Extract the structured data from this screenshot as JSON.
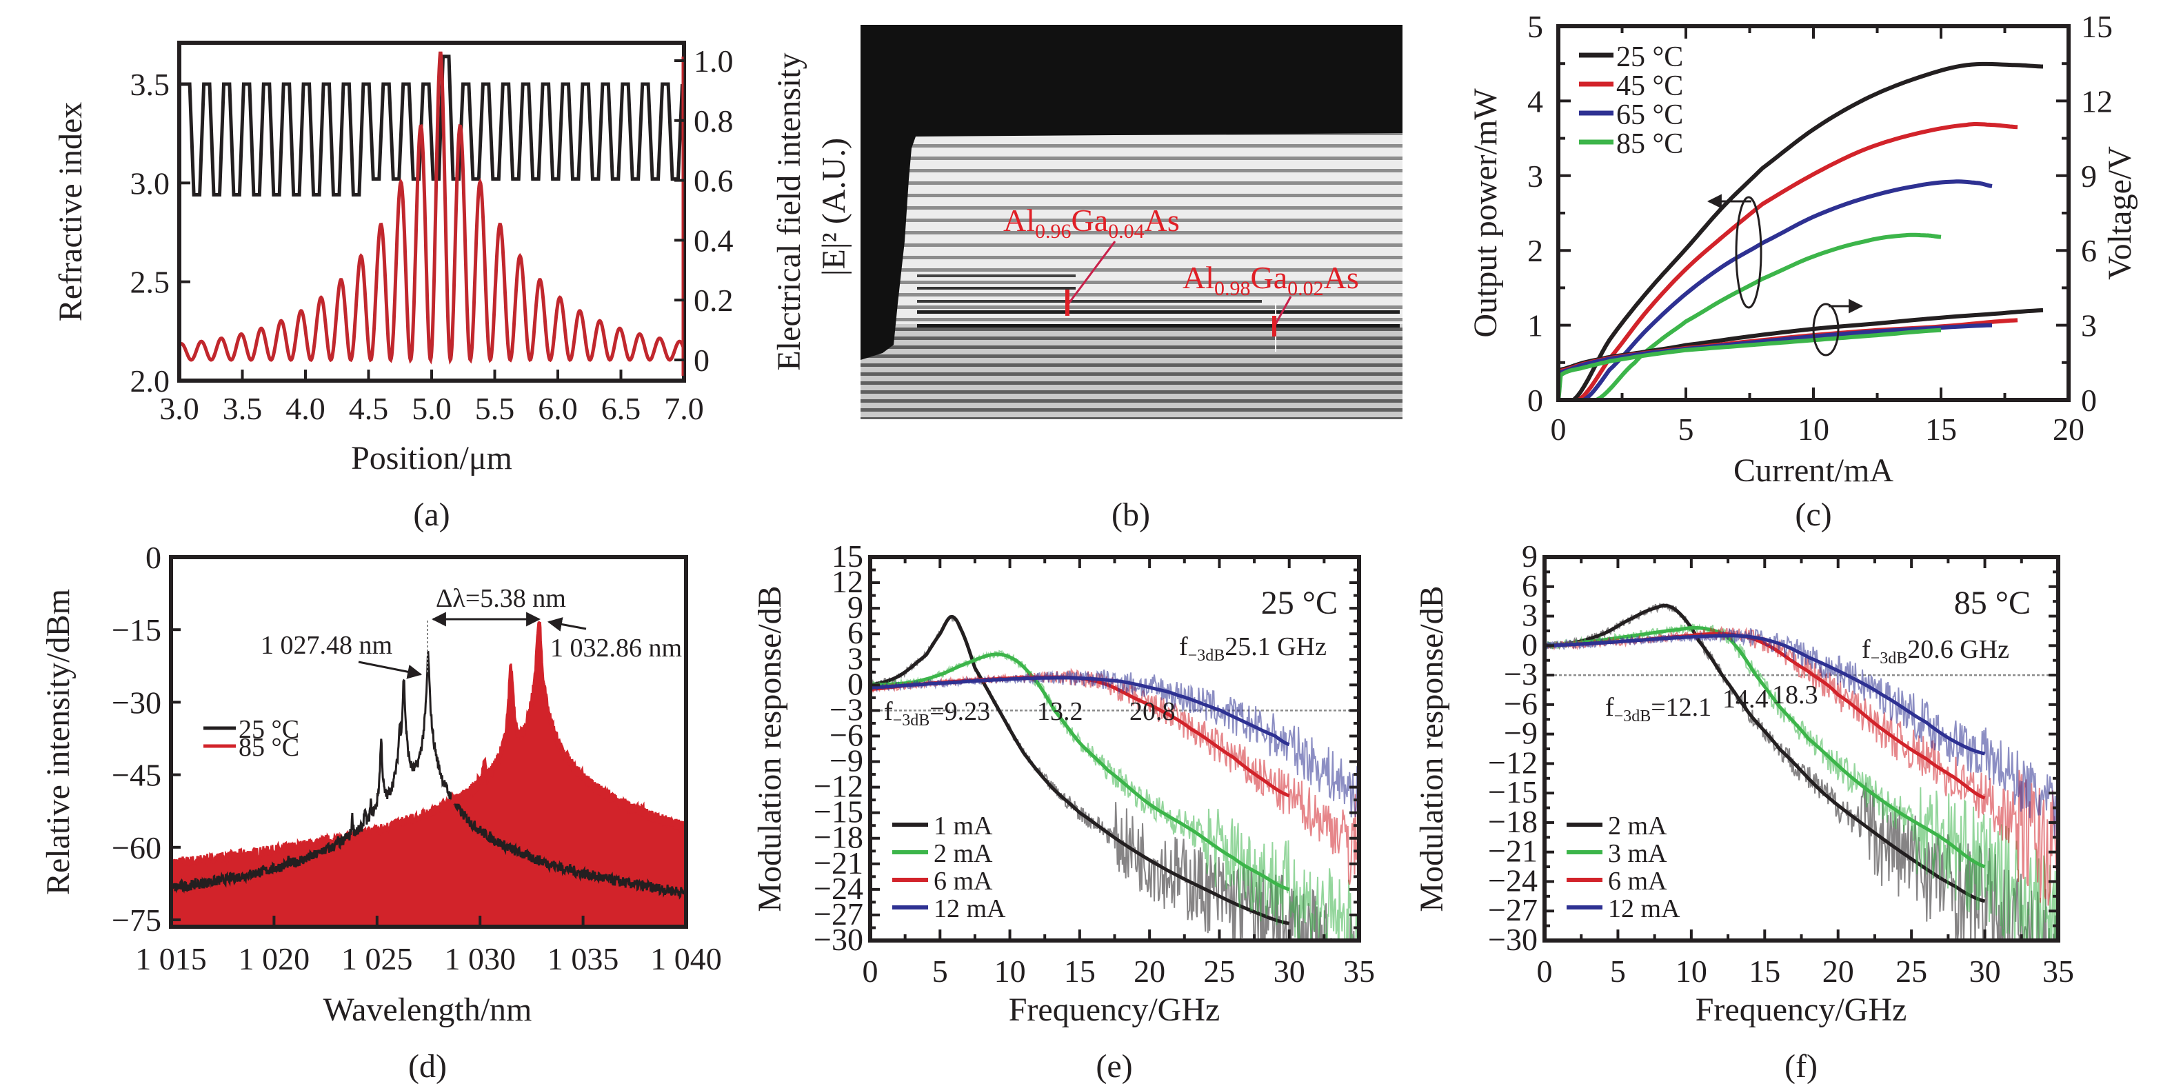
{
  "figure": {
    "panel_labels": [
      "(a)",
      "(b)",
      "(c)",
      "(d)",
      "(e)",
      "(f)"
    ]
  },
  "colors": {
    "black": "#231f20",
    "red": "#d2232a",
    "blue": "#2e3192",
    "green": "#3cb54a",
    "annot_red": "#e01f26",
    "gray_line": "#9a9a9a"
  },
  "chart_data": [
    {
      "id": "a",
      "type": "line",
      "title": "",
      "xlabel": "Position/μm",
      "ylabel": "Refractive index",
      "y2label": "Electrical field intensity |E|² (A.U.)",
      "xlim": [
        3.0,
        7.0
      ],
      "ylim": [
        2.0,
        3.7
      ],
      "y2lim": [
        -0.1,
        1.1
      ],
      "xticks": [
        "3.0",
        "3.5",
        "4.0",
        "4.5",
        "5.0",
        "5.5",
        "6.0",
        "6.5",
        "7.0"
      ],
      "yticks": [
        "2.0",
        "2.5",
        "3.0",
        "3.5"
      ],
      "y2ticks": [
        "0",
        "0.2",
        "0.4",
        "0.6",
        "0.8",
        "1.0"
      ],
      "series": [
        {
          "name": "Refractive index",
          "axis": "left",
          "color": "#231f20",
          "shape": "square-wave",
          "high": 3.5,
          "low_left": 2.94,
          "low_right": 3.02,
          "period_um": 0.158,
          "step_at_um": 4.46,
          "cavity_center_um": 5.07,
          "cavity_peak": 3.64
        },
        {
          "name": "Electric field intensity",
          "axis": "right",
          "color": "#c1272d",
          "shape": "standing-wave",
          "center_um": 5.07,
          "period_um": 0.158,
          "peak": 1.0,
          "decay_um": 0.55,
          "baseline_envelope": 0.03
        }
      ]
    },
    {
      "id": "b",
      "type": "image",
      "annotations": [
        {
          "base": "Al",
          "sub1": "0.96",
          "mid": "Ga",
          "sub2": "0.04",
          "end": "As"
        },
        {
          "base": "Al",
          "sub1": "0.98",
          "mid": "Ga",
          "sub2": "0.02",
          "end": "As"
        }
      ]
    },
    {
      "id": "c",
      "type": "line",
      "xlabel": "Current/mA",
      "ylabel": "Output power/mW",
      "y2label": "Voltage/V",
      "xlim": [
        0,
        20
      ],
      "ylim": [
        0,
        5
      ],
      "y2lim": [
        0,
        15
      ],
      "xticks": [
        "0",
        "5",
        "10",
        "15",
        "20"
      ],
      "yticks": [
        "0",
        "1",
        "2",
        "3",
        "4",
        "5"
      ],
      "y2ticks": [
        "0",
        "3",
        "6",
        "9",
        "12",
        "15"
      ],
      "legend": [
        "25 °C",
        "45 °C",
        "65 °C",
        "85 °C"
      ],
      "legend_position": "top-left",
      "series": [
        {
          "name": "25 °C power",
          "axis": "left",
          "color": "#231f20",
          "x": [
            0.6,
            2,
            3.5,
            5,
            6.5,
            8,
            10,
            12,
            14,
            16,
            18,
            19
          ],
          "y": [
            0,
            0.8,
            1.45,
            2.02,
            2.6,
            3.1,
            3.62,
            4.02,
            4.3,
            4.48,
            4.48,
            4.46
          ]
        },
        {
          "name": "45 °C power",
          "axis": "left",
          "color": "#d2232a",
          "x": [
            0.8,
            2,
            3.5,
            5,
            6.5,
            8,
            10,
            12,
            14,
            16,
            17,
            18
          ],
          "y": [
            0,
            0.55,
            1.2,
            1.75,
            2.2,
            2.62,
            3.02,
            3.35,
            3.56,
            3.68,
            3.68,
            3.65
          ]
        },
        {
          "name": "65 °C power",
          "axis": "left",
          "color": "#2e3192",
          "x": [
            1.0,
            2,
            3.5,
            5,
            6.5,
            8,
            10,
            12,
            14,
            15.5,
            16.5,
            17
          ],
          "y": [
            0,
            0.4,
            0.95,
            1.42,
            1.8,
            2.1,
            2.45,
            2.7,
            2.86,
            2.92,
            2.9,
            2.86
          ]
        },
        {
          "name": "85 °C power",
          "axis": "left",
          "color": "#3cb54a",
          "x": [
            1.5,
            3,
            4,
            5,
            6.5,
            8,
            10,
            12,
            13.5,
            14.5,
            15
          ],
          "y": [
            0,
            0.5,
            0.8,
            1.05,
            1.35,
            1.62,
            1.92,
            2.12,
            2.2,
            2.2,
            2.18
          ]
        },
        {
          "name": "25 °C voltage",
          "axis": "right",
          "color": "#231f20",
          "x": [
            0,
            1,
            2,
            3.5,
            5,
            7.5,
            10,
            12.5,
            15,
            17,
            19
          ],
          "y": [
            1.2,
            1.5,
            1.72,
            1.95,
            2.2,
            2.55,
            2.85,
            3.07,
            3.3,
            3.45,
            3.6
          ]
        },
        {
          "name": "45 °C voltage",
          "axis": "right",
          "color": "#d2232a",
          "x": [
            0,
            1,
            2,
            3.5,
            5,
            7.5,
            10,
            12.5,
            15,
            18
          ],
          "y": [
            1.15,
            1.45,
            1.68,
            1.9,
            2.08,
            2.35,
            2.6,
            2.8,
            2.95,
            3.2
          ]
        },
        {
          "name": "65 °C voltage",
          "axis": "right",
          "color": "#2e3192",
          "x": [
            0,
            1,
            2,
            3.5,
            5,
            7.5,
            10,
            12.5,
            15,
            17
          ],
          "y": [
            1.1,
            1.42,
            1.65,
            1.88,
            2.05,
            2.3,
            2.55,
            2.75,
            2.9,
            3.0
          ]
        },
        {
          "name": "85 °C voltage",
          "axis": "right",
          "color": "#3cb54a",
          "x": [
            0,
            0.1,
            1,
            2,
            3.5,
            5,
            7.5,
            10,
            12.5,
            15
          ],
          "y": [
            0,
            1.0,
            1.3,
            1.55,
            1.8,
            2.0,
            2.2,
            2.4,
            2.6,
            2.8
          ]
        }
      ],
      "annotations": [
        {
          "text": "left-arrow",
          "target": "power curves"
        },
        {
          "text": "right-arrow",
          "target": "voltage curves"
        }
      ]
    },
    {
      "id": "d",
      "type": "line",
      "xlabel": "Wavelength/nm",
      "ylabel": "Relative intensity/dBm",
      "xlim": [
        1015,
        1040
      ],
      "ylim": [
        -78,
        0
      ],
      "xticks": [
        "1 015",
        "1 020",
        "1 025",
        "1 030",
        "1 035",
        "1 040"
      ],
      "yticks": [
        "0",
        "−15",
        "−30",
        "−45",
        "−60",
        "−75"
      ],
      "legend": [
        "25 °C",
        "85 °C"
      ],
      "legend_position": "middle-left",
      "noise_floor_dbm": -75,
      "series": [
        {
          "name": "25 °C",
          "color": "#231f20",
          "peaks_nm": [
            1020.7,
            1022.3,
            1022.6,
            1023.1,
            1023.5,
            1023.8,
            1024.4,
            1024.7,
            1025.2,
            1026.1,
            1026.3,
            1027.48
          ],
          "peaks_dbm": [
            -71,
            -69,
            -70,
            -67,
            -65,
            -56,
            -55,
            -54,
            -38,
            -36,
            -25,
            -20
          ]
        },
        {
          "name": "85 °C",
          "color": "#d2232a",
          "peaks_nm": [
            1028.3,
            1028.8,
            1029.1,
            1029.6,
            1029.9,
            1030.2,
            1031.1,
            1031.5,
            1032.86
          ],
          "peaks_dbm": [
            -69,
            -65,
            -60,
            -61,
            -59,
            -46,
            -48,
            -23,
            -13
          ]
        }
      ],
      "annotations": [
        {
          "text": "1 027.48 nm"
        },
        {
          "text": "1 032.86 nm"
        },
        {
          "text": "Δλ=5.38 nm"
        }
      ]
    },
    {
      "id": "e",
      "type": "line",
      "title": "25 °C",
      "xlabel": "Frequency/GHz",
      "ylabel": "Modulation response/dB",
      "xlim": [
        0,
        35
      ],
      "ylim": [
        -30,
        15
      ],
      "xticks": [
        "0",
        "5",
        "10",
        "15",
        "20",
        "25",
        "30",
        "35"
      ],
      "yticks": [
        "15",
        "12",
        "9",
        "6",
        "3",
        "0",
        "−3",
        "−6",
        "−9",
        "−12",
        "−15",
        "−18",
        "−21",
        "−24",
        "−27",
        "−30"
      ],
      "reference_line_db": -3,
      "legend": [
        "1 mA",
        "2 mA",
        "6 mA",
        "12 mA"
      ],
      "legend_position": "bottom-left",
      "series": [
        {
          "name": "1 mA",
          "color": "#231f20",
          "f3db_ghz": 9.23,
          "x": [
            0,
            2,
            4,
            5,
            5.8,
            6.5,
            7.5,
            9.23,
            11,
            13,
            15,
            18,
            21,
            24,
            27,
            30
          ],
          "y": [
            0,
            1,
            3.5,
            6,
            8,
            6.5,
            2,
            -3,
            -8,
            -12,
            -15,
            -18.5,
            -21.5,
            -24,
            -26.3,
            -28
          ]
        },
        {
          "name": "2 mA",
          "color": "#3cb54a",
          "f3db_ghz": 13.2,
          "x": [
            0,
            3,
            5,
            7,
            9,
            10.5,
            12,
            13.2,
            15,
            17,
            20,
            23,
            26,
            28,
            30
          ],
          "y": [
            0,
            0.3,
            1.2,
            2.6,
            3.6,
            2.8,
            0.2,
            -3,
            -6.8,
            -10,
            -14,
            -17,
            -20.3,
            -22.3,
            -24
          ]
        },
        {
          "name": "6 mA",
          "color": "#d2232a",
          "f3db_ghz": 20.8,
          "x": [
            0,
            3,
            6,
            9,
            12,
            15,
            17,
            19,
            20.8,
            23,
            26,
            28,
            30
          ],
          "y": [
            -0.5,
            0,
            0.4,
            0.7,
            0.9,
            0.8,
            0,
            -1.6,
            -3,
            -5.2,
            -8.5,
            -11,
            -13
          ]
        },
        {
          "name": "12 mA",
          "color": "#2e3192",
          "f3db_ghz": 25.1,
          "x": [
            0,
            3,
            6,
            9,
            12,
            15,
            18,
            20,
            22,
            25.1,
            27,
            29,
            30
          ],
          "y": [
            -0.3,
            0,
            0.3,
            0.6,
            0.8,
            0.8,
            0.4,
            -0.3,
            -1.2,
            -3,
            -4.5,
            -6,
            -7
          ]
        }
      ],
      "annotations": [
        {
          "prefix": "f",
          "sub": "−3dB",
          "text": "=9.23"
        },
        {
          "text": "13.2"
        },
        {
          "text": "20.8"
        },
        {
          "prefix": "f",
          "sub": "−3dB",
          "text": "25.1 GHz"
        }
      ]
    },
    {
      "id": "f",
      "type": "line",
      "title": "85 °C",
      "xlabel": "Frequency/GHz",
      "ylabel": "Modulation response/dB",
      "xlim": [
        0,
        35
      ],
      "ylim": [
        -30,
        9
      ],
      "xticks": [
        "0",
        "5",
        "10",
        "15",
        "20",
        "25",
        "30",
        "35"
      ],
      "yticks": [
        "9",
        "6",
        "3",
        "0",
        "−3",
        "−6",
        "−9",
        "−12",
        "−15",
        "−18",
        "−21",
        "−24",
        "−27",
        "−30"
      ],
      "reference_line_db": -3,
      "legend": [
        "2 mA",
        "3 mA",
        "6 mA",
        "12 mA"
      ],
      "legend_position": "bottom-left",
      "series": [
        {
          "name": "2 mA",
          "color": "#231f20",
          "f3db_ghz": 12.1,
          "x": [
            0,
            2,
            4,
            6,
            7.5,
            8.5,
            9.5,
            10.5,
            12.1,
            14,
            16,
            19,
            22,
            25,
            28,
            30
          ],
          "y": [
            0,
            0.3,
            1.2,
            2.8,
            3.8,
            4,
            2.8,
            0.5,
            -3,
            -7,
            -10.5,
            -15,
            -18.5,
            -21.7,
            -24.5,
            -26
          ]
        },
        {
          "name": "3 mA",
          "color": "#3cb54a",
          "f3db_ghz": 14.4,
          "x": [
            0,
            3,
            6,
            9,
            10.5,
            12,
            13,
            14.4,
            16,
            18,
            21,
            24,
            27,
            30
          ],
          "y": [
            0,
            0.4,
            1,
            1.6,
            1.8,
            1.3,
            0,
            -3,
            -6.2,
            -9.5,
            -13.5,
            -16.8,
            -19.5,
            -22.5
          ]
        },
        {
          "name": "6 mA",
          "color": "#d2232a",
          "f3db_ghz": 18.3,
          "x": [
            0,
            3,
            6,
            9,
            12,
            14,
            15.5,
            17,
            18.3,
            20,
            23,
            26,
            28,
            30
          ],
          "y": [
            0,
            0.2,
            0.5,
            0.9,
            1.2,
            0.8,
            -0.2,
            -1.7,
            -3,
            -5,
            -8.5,
            -11.5,
            -13.5,
            -15.5
          ]
        },
        {
          "name": "12 mA",
          "color": "#2e3192",
          "f3db_ghz": 20.6,
          "x": [
            0,
            3,
            6,
            9,
            12,
            14,
            16,
            18,
            20.6,
            23,
            26,
            28,
            30
          ],
          "y": [
            0,
            0.2,
            0.5,
            0.8,
            1.0,
            0.9,
            0.2,
            -1.2,
            -3,
            -5,
            -7.8,
            -9.8,
            -11
          ]
        }
      ],
      "annotations": [
        {
          "prefix": "f",
          "sub": "−3dB",
          "text": "=12.1"
        },
        {
          "text": "14.4"
        },
        {
          "text": "18.3"
        },
        {
          "prefix": "f",
          "sub": "−3dB",
          "text": "20.6 GHz"
        }
      ]
    }
  ]
}
